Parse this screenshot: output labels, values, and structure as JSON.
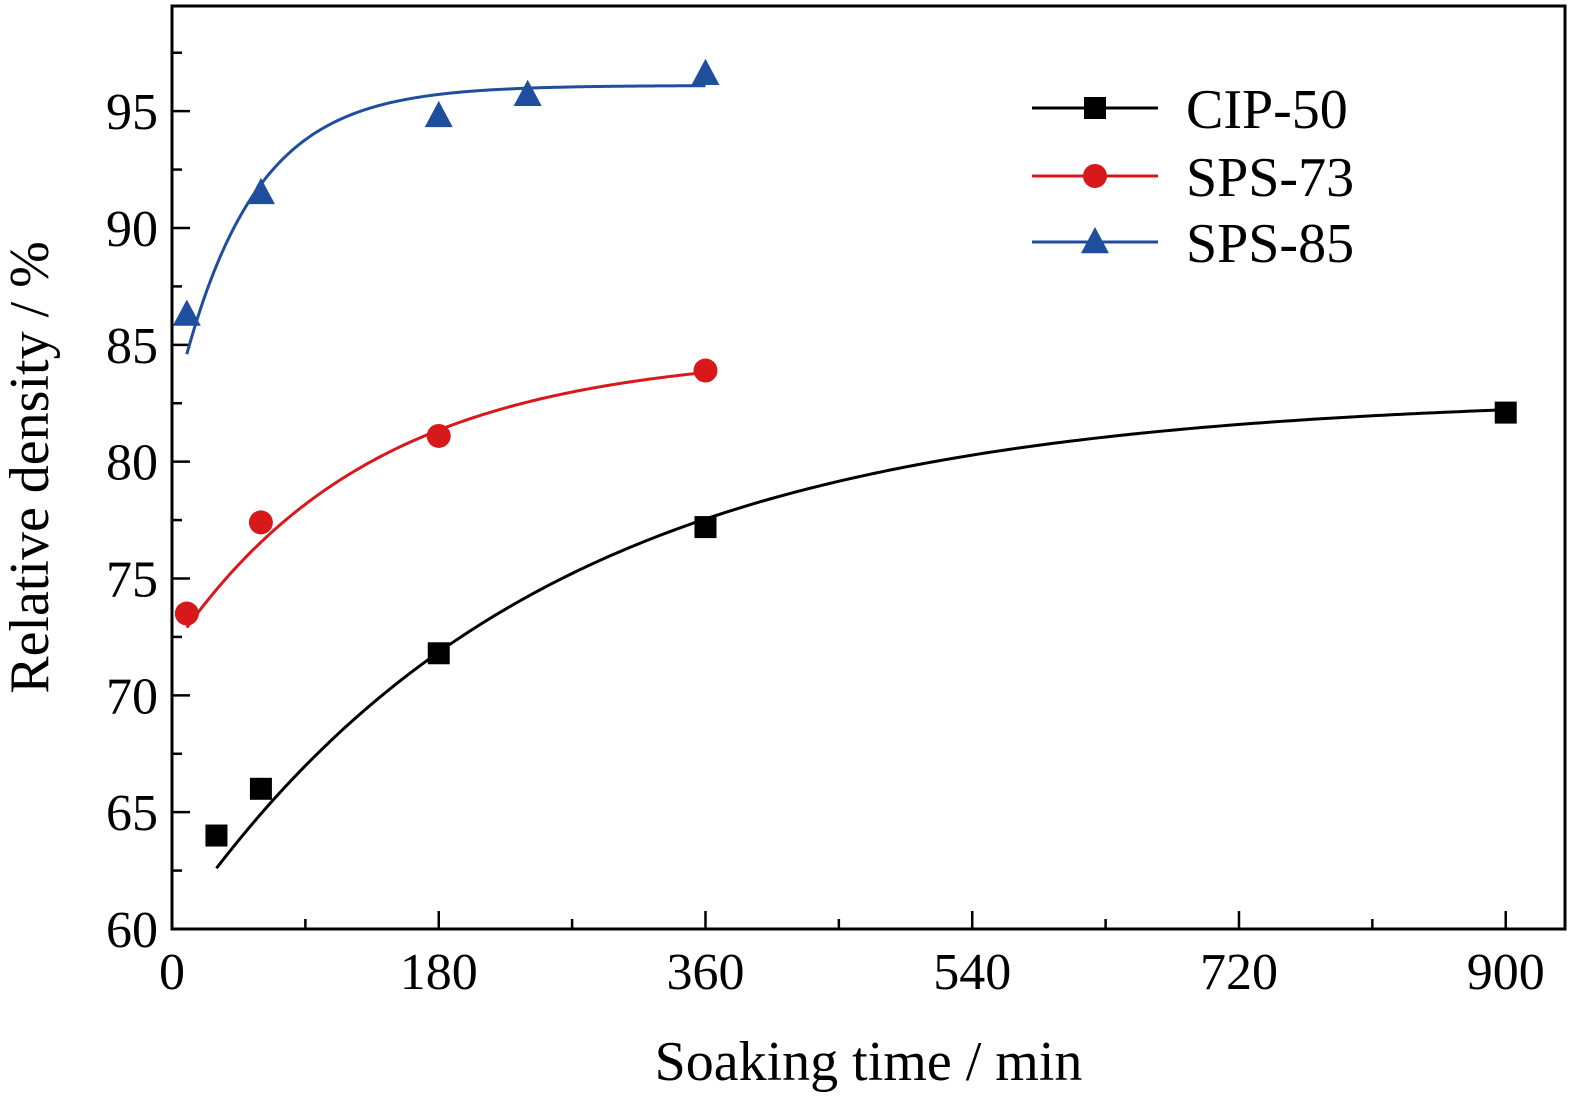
{
  "chart_data": {
    "type": "line",
    "title": "",
    "xlabel": "Soaking time / min",
    "ylabel": "Relative density / %",
    "xlim": [
      0,
      940
    ],
    "ylim": [
      60,
      99.5
    ],
    "xticks": [
      0,
      180,
      360,
      540,
      720,
      900
    ],
    "yticks": [
      60,
      65,
      70,
      75,
      80,
      85,
      90,
      95
    ],
    "x_minor_step": 90,
    "y_minor_step": 2.5,
    "grid": false,
    "legend_position": "top-right",
    "series": [
      {
        "name": "CIP-50",
        "color": "#000000",
        "marker": "square",
        "x": [
          30,
          60,
          180,
          360,
          900
        ],
        "y": [
          64.0,
          66.0,
          71.8,
          77.2,
          82.1
        ],
        "fit": {
          "model": "exp-saturation",
          "A": 82.8,
          "B": 20.2,
          "tau": 245,
          "x_start": 30,
          "x_end": 900
        }
      },
      {
        "name": "SPS-73",
        "color": "#d7191c",
        "marker": "circle",
        "x": [
          10,
          60,
          180,
          360
        ],
        "y": [
          73.5,
          77.4,
          81.1,
          83.9
        ],
        "fit": {
          "model": "exp-saturation",
          "A": 84.7,
          "B": 11.8,
          "tau": 135,
          "x_start": 10,
          "x_end": 360
        }
      },
      {
        "name": "SPS-85",
        "color": "#1f4e9c",
        "marker": "triangle",
        "x": [
          10,
          60,
          180,
          240,
          360
        ],
        "y": [
          86.3,
          91.5,
          94.8,
          95.7,
          96.6
        ],
        "fit": {
          "model": "exp-saturation",
          "A": 96.1,
          "B": 11.5,
          "tau": 50,
          "x_start": 10,
          "x_end": 360
        }
      }
    ]
  }
}
